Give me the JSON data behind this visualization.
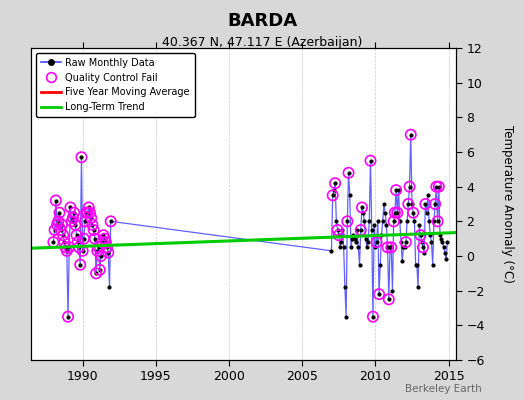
{
  "title": "BARDA",
  "subtitle": "40.367 N, 47.117 E (Azerbaijan)",
  "ylabel": "Temperature Anomaly (°C)",
  "watermark": "Berkeley Earth",
  "outer_bg": "#d8d8d8",
  "plot_bg": "#ffffff",
  "xlim": [
    1986.5,
    2015.5
  ],
  "ylim": [
    -6,
    12
  ],
  "yticks": [
    -6,
    -4,
    -2,
    0,
    2,
    4,
    6,
    8,
    10,
    12
  ],
  "xticks": [
    1990,
    1995,
    2000,
    2005,
    2010,
    2015
  ],
  "raw_data_years": [
    1988.0,
    1988.083,
    1988.167,
    1988.25,
    1988.333,
    1988.417,
    1988.5,
    1988.583,
    1988.667,
    1988.75,
    1988.833,
    1988.917,
    1989.0,
    1989.083,
    1989.167,
    1989.25,
    1989.333,
    1989.417,
    1989.5,
    1989.583,
    1989.667,
    1989.75,
    1989.833,
    1989.917,
    1990.0,
    1990.083,
    1990.167,
    1990.25,
    1990.333,
    1990.417,
    1990.5,
    1990.583,
    1990.667,
    1990.75,
    1990.833,
    1990.917,
    1991.0,
    1991.083,
    1991.167,
    1991.25,
    1991.333,
    1991.417,
    1991.5,
    1991.583,
    1991.667,
    1991.75,
    1991.833,
    1991.917,
    2007.0,
    2007.083,
    2007.167,
    2007.25,
    2007.333,
    2007.417,
    2007.5,
    2007.583,
    2007.667,
    2007.75,
    2007.833,
    2007.917,
    2008.0,
    2008.083,
    2008.167,
    2008.25,
    2008.333,
    2008.417,
    2008.5,
    2008.583,
    2008.667,
    2008.75,
    2008.833,
    2008.917,
    2009.0,
    2009.083,
    2009.167,
    2009.25,
    2009.333,
    2009.417,
    2009.5,
    2009.583,
    2009.667,
    2009.75,
    2009.833,
    2009.917,
    2010.0,
    2010.083,
    2010.167,
    2010.25,
    2010.333,
    2010.417,
    2010.5,
    2010.583,
    2010.667,
    2010.75,
    2010.833,
    2010.917,
    2011.0,
    2011.083,
    2011.167,
    2011.25,
    2011.333,
    2011.417,
    2011.5,
    2011.583,
    2011.667,
    2011.75,
    2011.833,
    2011.917,
    2012.0,
    2012.083,
    2012.167,
    2012.25,
    2012.333,
    2012.417,
    2012.5,
    2012.583,
    2012.667,
    2012.75,
    2012.833,
    2012.917,
    2013.0,
    2013.083,
    2013.167,
    2013.25,
    2013.333,
    2013.417,
    2013.5,
    2013.583,
    2013.667,
    2013.75,
    2013.833,
    2013.917,
    2014.0,
    2014.083,
    2014.167,
    2014.25,
    2014.333,
    2014.417,
    2014.5,
    2014.583,
    2014.667,
    2014.75,
    2014.833,
    2014.917
  ],
  "raw_data_values": [
    0.8,
    1.5,
    3.2,
    1.8,
    2.0,
    2.5,
    1.5,
    1.8,
    1.2,
    0.8,
    0.5,
    0.3,
    -3.5,
    0.5,
    2.8,
    2.0,
    2.2,
    2.5,
    1.8,
    1.2,
    0.8,
    0.5,
    -0.5,
    5.7,
    0.3,
    1.0,
    2.0,
    2.5,
    2.5,
    2.8,
    2.5,
    2.2,
    1.8,
    1.5,
    1.0,
    -1.0,
    0.3,
    0.5,
    -0.8,
    0.0,
    0.8,
    1.2,
    1.0,
    0.8,
    0.5,
    0.2,
    -1.8,
    2.0,
    0.3,
    3.5,
    3.8,
    4.2,
    2.0,
    1.5,
    1.2,
    0.5,
    0.8,
    1.5,
    0.5,
    -1.8,
    -3.5,
    2.0,
    4.8,
    3.5,
    0.5,
    1.0,
    1.2,
    1.0,
    0.8,
    1.5,
    0.5,
    -0.5,
    1.5,
    2.8,
    2.5,
    2.0,
    1.0,
    0.5,
    0.8,
    2.0,
    5.5,
    1.5,
    -3.5,
    1.8,
    0.5,
    0.8,
    2.0,
    -2.2,
    -0.5,
    1.2,
    2.0,
    3.0,
    2.5,
    1.8,
    0.5,
    -2.5,
    0.5,
    0.5,
    -2.0,
    2.0,
    2.5,
    3.8,
    2.5,
    3.8,
    2.0,
    0.8,
    -0.3,
    0.5,
    0.5,
    0.8,
    2.0,
    3.0,
    4.0,
    7.0,
    3.0,
    2.5,
    2.0,
    -0.5,
    -0.5,
    -1.8,
    1.8,
    1.2,
    0.8,
    0.5,
    0.2,
    3.0,
    2.5,
    3.5,
    2.0,
    1.2,
    0.8,
    -0.5,
    2.0,
    3.0,
    4.0,
    2.0,
    4.0,
    1.2,
    1.0,
    0.8,
    0.5,
    0.2,
    -0.2,
    0.8
  ],
  "qc_years": [
    1988.0,
    1988.083,
    1988.167,
    1988.25,
    1988.333,
    1988.417,
    1988.5,
    1988.583,
    1988.667,
    1988.75,
    1988.833,
    1988.917,
    1989.0,
    1989.083,
    1989.167,
    1989.25,
    1989.333,
    1989.417,
    1989.5,
    1989.583,
    1989.667,
    1989.75,
    1989.833,
    1989.917,
    1990.0,
    1990.083,
    1990.167,
    1990.25,
    1990.333,
    1990.417,
    1990.5,
    1990.583,
    1990.667,
    1990.75,
    1990.833,
    1990.917,
    1991.0,
    1991.083,
    1991.167,
    1991.25,
    1991.333,
    1991.417,
    1991.5,
    1991.583,
    1991.667,
    1991.75,
    1991.917,
    2007.083,
    2007.25,
    2007.417,
    2007.5,
    2008.083,
    2008.167,
    2009.0,
    2009.083,
    2009.667,
    2009.833,
    2010.083,
    2010.25,
    2010.833,
    2010.917,
    2011.083,
    2011.25,
    2011.333,
    2011.417,
    2011.5,
    2012.083,
    2012.25,
    2012.333,
    2012.417,
    2012.583,
    2013.083,
    2013.25,
    2013.417,
    2014.083,
    2014.167,
    2014.25,
    2014.333
  ],
  "qc_values": [
    0.8,
    1.5,
    3.2,
    1.8,
    2.0,
    2.5,
    1.5,
    1.8,
    1.2,
    0.8,
    0.5,
    0.3,
    -3.5,
    0.5,
    2.8,
    2.0,
    2.2,
    2.5,
    1.8,
    1.2,
    0.8,
    0.5,
    -0.5,
    5.7,
    0.3,
    1.0,
    2.0,
    2.5,
    2.5,
    2.8,
    2.5,
    2.2,
    1.8,
    1.5,
    1.0,
    -1.0,
    0.3,
    0.5,
    -0.8,
    0.0,
    0.8,
    1.2,
    1.0,
    0.8,
    0.5,
    0.2,
    2.0,
    3.5,
    4.2,
    1.5,
    1.2,
    2.0,
    4.8,
    1.5,
    2.8,
    5.5,
    -3.5,
    0.8,
    -2.2,
    0.5,
    -2.5,
    0.5,
    2.0,
    2.5,
    3.8,
    2.5,
    0.8,
    3.0,
    4.0,
    7.0,
    2.5,
    1.2,
    0.5,
    3.0,
    3.0,
    4.0,
    2.0,
    4.0
  ],
  "trend_x": [
    1986.5,
    2015.5
  ],
  "trend_y": [
    0.45,
    1.35
  ],
  "colors": {
    "raw_line": "#4444ff",
    "raw_dot": "#000000",
    "qc_fail": "#ff00ff",
    "moving_avg": "#ff0000",
    "trend": "#00cc00"
  }
}
